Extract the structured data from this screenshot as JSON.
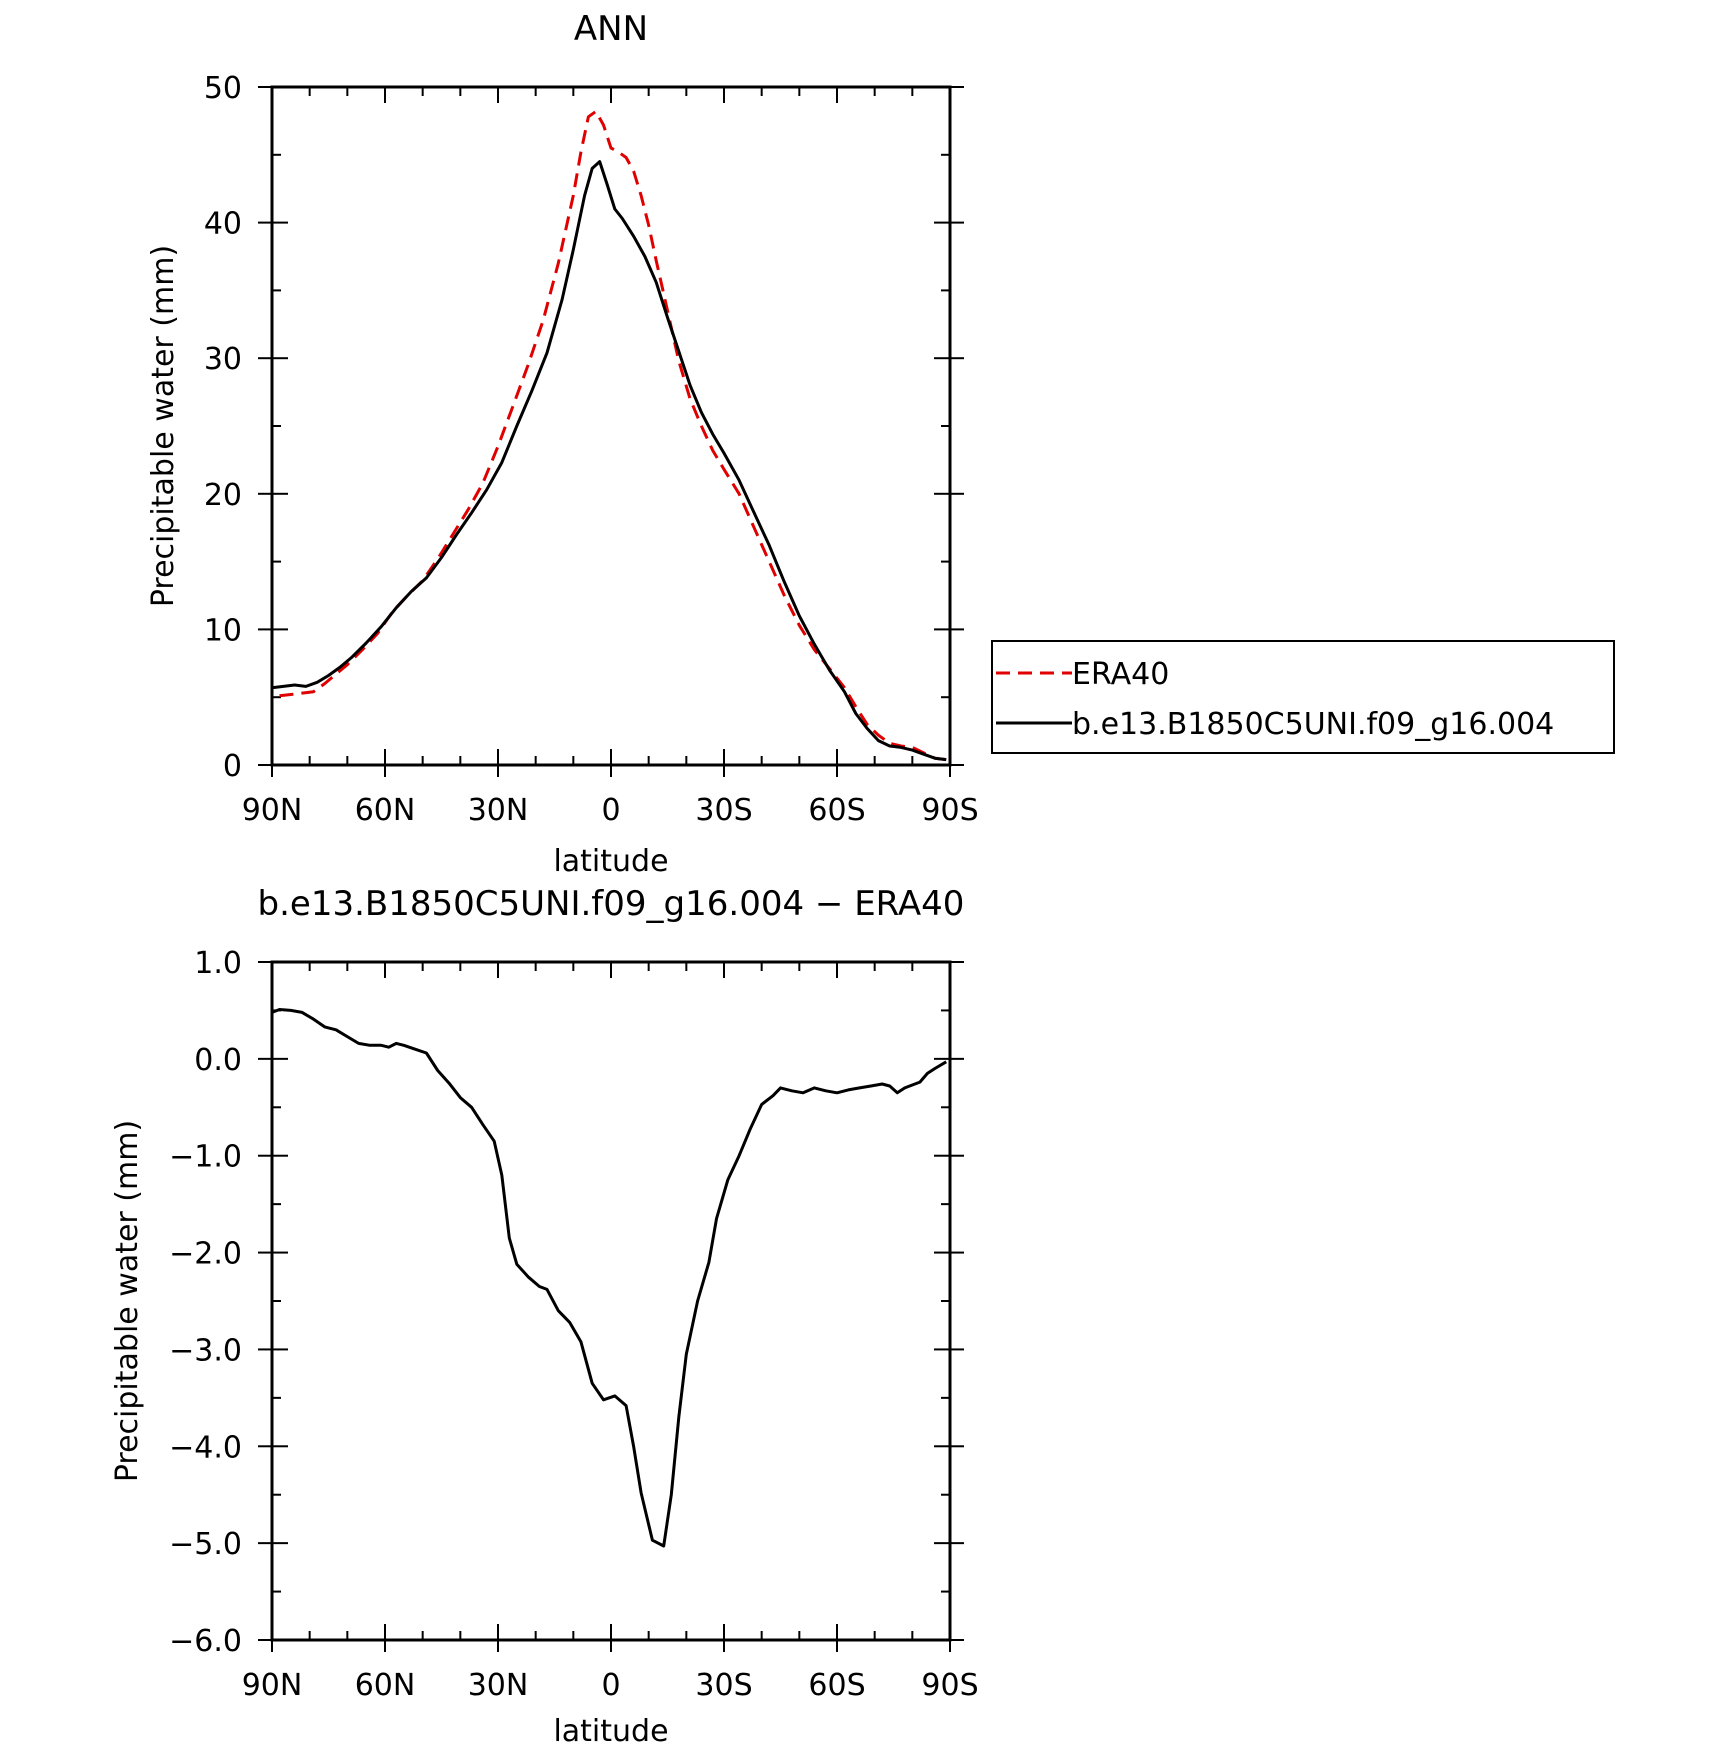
{
  "chart_data": [
    {
      "type": "line",
      "title": "ANN",
      "xlabel": "latitude",
      "ylabel": "Precipitable water (mm)",
      "xlim": [
        90,
        -90
      ],
      "ylim": [
        0,
        50
      ],
      "x_ticks": [
        90,
        60,
        30,
        0,
        -30,
        -60,
        -90
      ],
      "x_tick_labels": [
        "90N",
        "60N",
        "30N",
        "0",
        "30S",
        "60S",
        "90S"
      ],
      "y_ticks": [
        0,
        10,
        20,
        30,
        40,
        50
      ],
      "y_tick_labels": [
        "0",
        "10",
        "20",
        "30",
        "40",
        "50"
      ],
      "legend_position": "right",
      "series": [
        {
          "name": "ERA40",
          "color": "#e00000",
          "dash": "dashed",
          "points": [
            [
              88,
              5.1
            ],
            [
              85,
              5.2
            ],
            [
              82,
              5.3
            ],
            [
              79,
              5.4
            ],
            [
              76,
              6.0
            ],
            [
              73,
              6.7
            ],
            [
              70,
              7.4
            ],
            [
              66,
              8.5
            ],
            [
              62,
              9.7
            ],
            [
              58,
              11.3
            ],
            [
              54,
              12.5
            ],
            [
              50,
              13.6
            ],
            [
              46,
              15.2
            ],
            [
              42,
              17.0
            ],
            [
              38,
              18.8
            ],
            [
              34,
              20.8
            ],
            [
              30,
              23.5
            ],
            [
              26,
              26.5
            ],
            [
              22,
              29.5
            ],
            [
              18,
              32.8
            ],
            [
              14,
              37.0
            ],
            [
              10,
              42.0
            ],
            [
              8,
              45.2
            ],
            [
              6,
              47.8
            ],
            [
              4,
              48.2
            ],
            [
              2,
              47.2
            ],
            [
              0,
              45.5
            ],
            [
              -2,
              45.2
            ],
            [
              -4,
              44.8
            ],
            [
              -6,
              43.8
            ],
            [
              -8,
              42.0
            ],
            [
              -10,
              39.8
            ],
            [
              -12,
              37.2
            ],
            [
              -15,
              33.5
            ],
            [
              -18,
              29.8
            ],
            [
              -21,
              27.0
            ],
            [
              -24,
              25.0
            ],
            [
              -27,
              23.2
            ],
            [
              -30,
              21.8
            ],
            [
              -34,
              20.0
            ],
            [
              -38,
              17.5
            ],
            [
              -42,
              15.0
            ],
            [
              -46,
              12.5
            ],
            [
              -50,
              10.3
            ],
            [
              -54,
              8.5
            ],
            [
              -58,
              7.1
            ],
            [
              -62,
              5.7
            ],
            [
              -65,
              4.3
            ],
            [
              -68,
              3.0
            ],
            [
              -71,
              2.2
            ],
            [
              -74,
              1.6
            ],
            [
              -77,
              1.4
            ],
            [
              -80,
              1.3
            ],
            [
              -83,
              0.9
            ],
            [
              -86,
              0.5
            ],
            [
              -89,
              0.4
            ]
          ]
        },
        {
          "name": "b.e13.B1850C5UNI.f09_g16.004",
          "color": "#000000",
          "dash": "solid",
          "points": [
            [
              90,
              5.7
            ],
            [
              87,
              5.8
            ],
            [
              84,
              5.9
            ],
            [
              81,
              5.8
            ],
            [
              78,
              6.1
            ],
            [
              75,
              6.6
            ],
            [
              72,
              7.2
            ],
            [
              69,
              7.9
            ],
            [
              65,
              9.0
            ],
            [
              61,
              10.2
            ],
            [
              57,
              11.6
            ],
            [
              53,
              12.8
            ],
            [
              49,
              13.8
            ],
            [
              45,
              15.3
            ],
            [
              41,
              17.0
            ],
            [
              37,
              18.6
            ],
            [
              33,
              20.3
            ],
            [
              29,
              22.3
            ],
            [
              25,
              25.0
            ],
            [
              21,
              27.6
            ],
            [
              17,
              30.4
            ],
            [
              13,
              34.3
            ],
            [
              10,
              38.0
            ],
            [
              7,
              42.0
            ],
            [
              5,
              44.0
            ],
            [
              3,
              44.5
            ],
            [
              1,
              42.8
            ],
            [
              -1,
              41.0
            ],
            [
              -3,
              40.3
            ],
            [
              -6,
              39.0
            ],
            [
              -9,
              37.5
            ],
            [
              -12,
              35.6
            ],
            [
              -15,
              33.0
            ],
            [
              -18,
              30.5
            ],
            [
              -21,
              28.0
            ],
            [
              -24,
              26.0
            ],
            [
              -27,
              24.4
            ],
            [
              -30,
              23.0
            ],
            [
              -34,
              21.0
            ],
            [
              -38,
              18.6
            ],
            [
              -42,
              16.2
            ],
            [
              -46,
              13.5
            ],
            [
              -50,
              11.0
            ],
            [
              -54,
              8.9
            ],
            [
              -58,
              7.0
            ],
            [
              -62,
              5.4
            ],
            [
              -65,
              3.8
            ],
            [
              -68,
              2.7
            ],
            [
              -71,
              1.8
            ],
            [
              -74,
              1.4
            ],
            [
              -77,
              1.3
            ],
            [
              -80,
              1.1
            ],
            [
              -83,
              0.8
            ],
            [
              -86,
              0.5
            ],
            [
              -89,
              0.4
            ]
          ]
        }
      ]
    },
    {
      "type": "line",
      "title": "b.e13.B1850C5UNI.f09_g16.004 − ERA40",
      "xlabel": "latitude",
      "ylabel": "Precipitable water (mm)",
      "xlim": [
        90,
        -90
      ],
      "ylim": [
        -6,
        1
      ],
      "x_ticks": [
        90,
        60,
        30,
        0,
        -30,
        -60,
        -90
      ],
      "x_tick_labels": [
        "90N",
        "60N",
        "30N",
        "0",
        "30S",
        "60S",
        "90S"
      ],
      "y_ticks": [
        1,
        0,
        -1,
        -2,
        -3,
        -4,
        -5,
        -6
      ],
      "y_tick_labels": [
        "1.0",
        "0.0",
        "−1.0",
        "−2.0",
        "−3.0",
        "−4.0",
        "−5.0",
        "−6.0"
      ],
      "series": [
        {
          "color": "#000000",
          "dash": "solid",
          "points": [
            [
              90,
              0.48
            ],
            [
              88,
              0.51
            ],
            [
              85,
              0.5
            ],
            [
              82,
              0.48
            ],
            [
              79,
              0.41
            ],
            [
              76,
              0.33
            ],
            [
              73,
              0.3
            ],
            [
              70,
              0.23
            ],
            [
              67,
              0.16
            ],
            [
              64,
              0.14
            ],
            [
              61,
              0.14
            ],
            [
              59,
              0.12
            ],
            [
              57,
              0.16
            ],
            [
              55,
              0.14
            ],
            [
              52,
              0.1
            ],
            [
              49,
              0.06
            ],
            [
              46,
              -0.12
            ],
            [
              43,
              -0.25
            ],
            [
              40,
              -0.4
            ],
            [
              37,
              -0.5
            ],
            [
              34,
              -0.68
            ],
            [
              31,
              -0.85
            ],
            [
              29,
              -1.2
            ],
            [
              27,
              -1.85
            ],
            [
              25,
              -2.12
            ],
            [
              22,
              -2.25
            ],
            [
              19,
              -2.35
            ],
            [
              17,
              -2.38
            ],
            [
              14,
              -2.6
            ],
            [
              11,
              -2.72
            ],
            [
              8,
              -2.92
            ],
            [
              5,
              -3.35
            ],
            [
              2,
              -3.52
            ],
            [
              -1,
              -3.48
            ],
            [
              -4,
              -3.58
            ],
            [
              -6,
              -4.0
            ],
            [
              -8,
              -4.48
            ],
            [
              -11,
              -4.97
            ],
            [
              -14,
              -5.03
            ],
            [
              -16,
              -4.5
            ],
            [
              -18,
              -3.7
            ],
            [
              -20,
              -3.05
            ],
            [
              -23,
              -2.5
            ],
            [
              -26,
              -2.1
            ],
            [
              -28,
              -1.65
            ],
            [
              -31,
              -1.25
            ],
            [
              -34,
              -1.0
            ],
            [
              -37,
              -0.72
            ],
            [
              -40,
              -0.47
            ],
            [
              -43,
              -0.38
            ],
            [
              -45,
              -0.3
            ],
            [
              -48,
              -0.33
            ],
            [
              -51,
              -0.35
            ],
            [
              -54,
              -0.3
            ],
            [
              -57,
              -0.33
            ],
            [
              -60,
              -0.35
            ],
            [
              -63,
              -0.32
            ],
            [
              -66,
              -0.3
            ],
            [
              -69,
              -0.28
            ],
            [
              -72,
              -0.26
            ],
            [
              -74,
              -0.28
            ],
            [
              -76,
              -0.35
            ],
            [
              -78,
              -0.3
            ],
            [
              -80,
              -0.27
            ],
            [
              -82,
              -0.24
            ],
            [
              -84,
              -0.15
            ],
            [
              -86,
              -0.1
            ],
            [
              -89,
              -0.03
            ]
          ]
        }
      ]
    }
  ]
}
